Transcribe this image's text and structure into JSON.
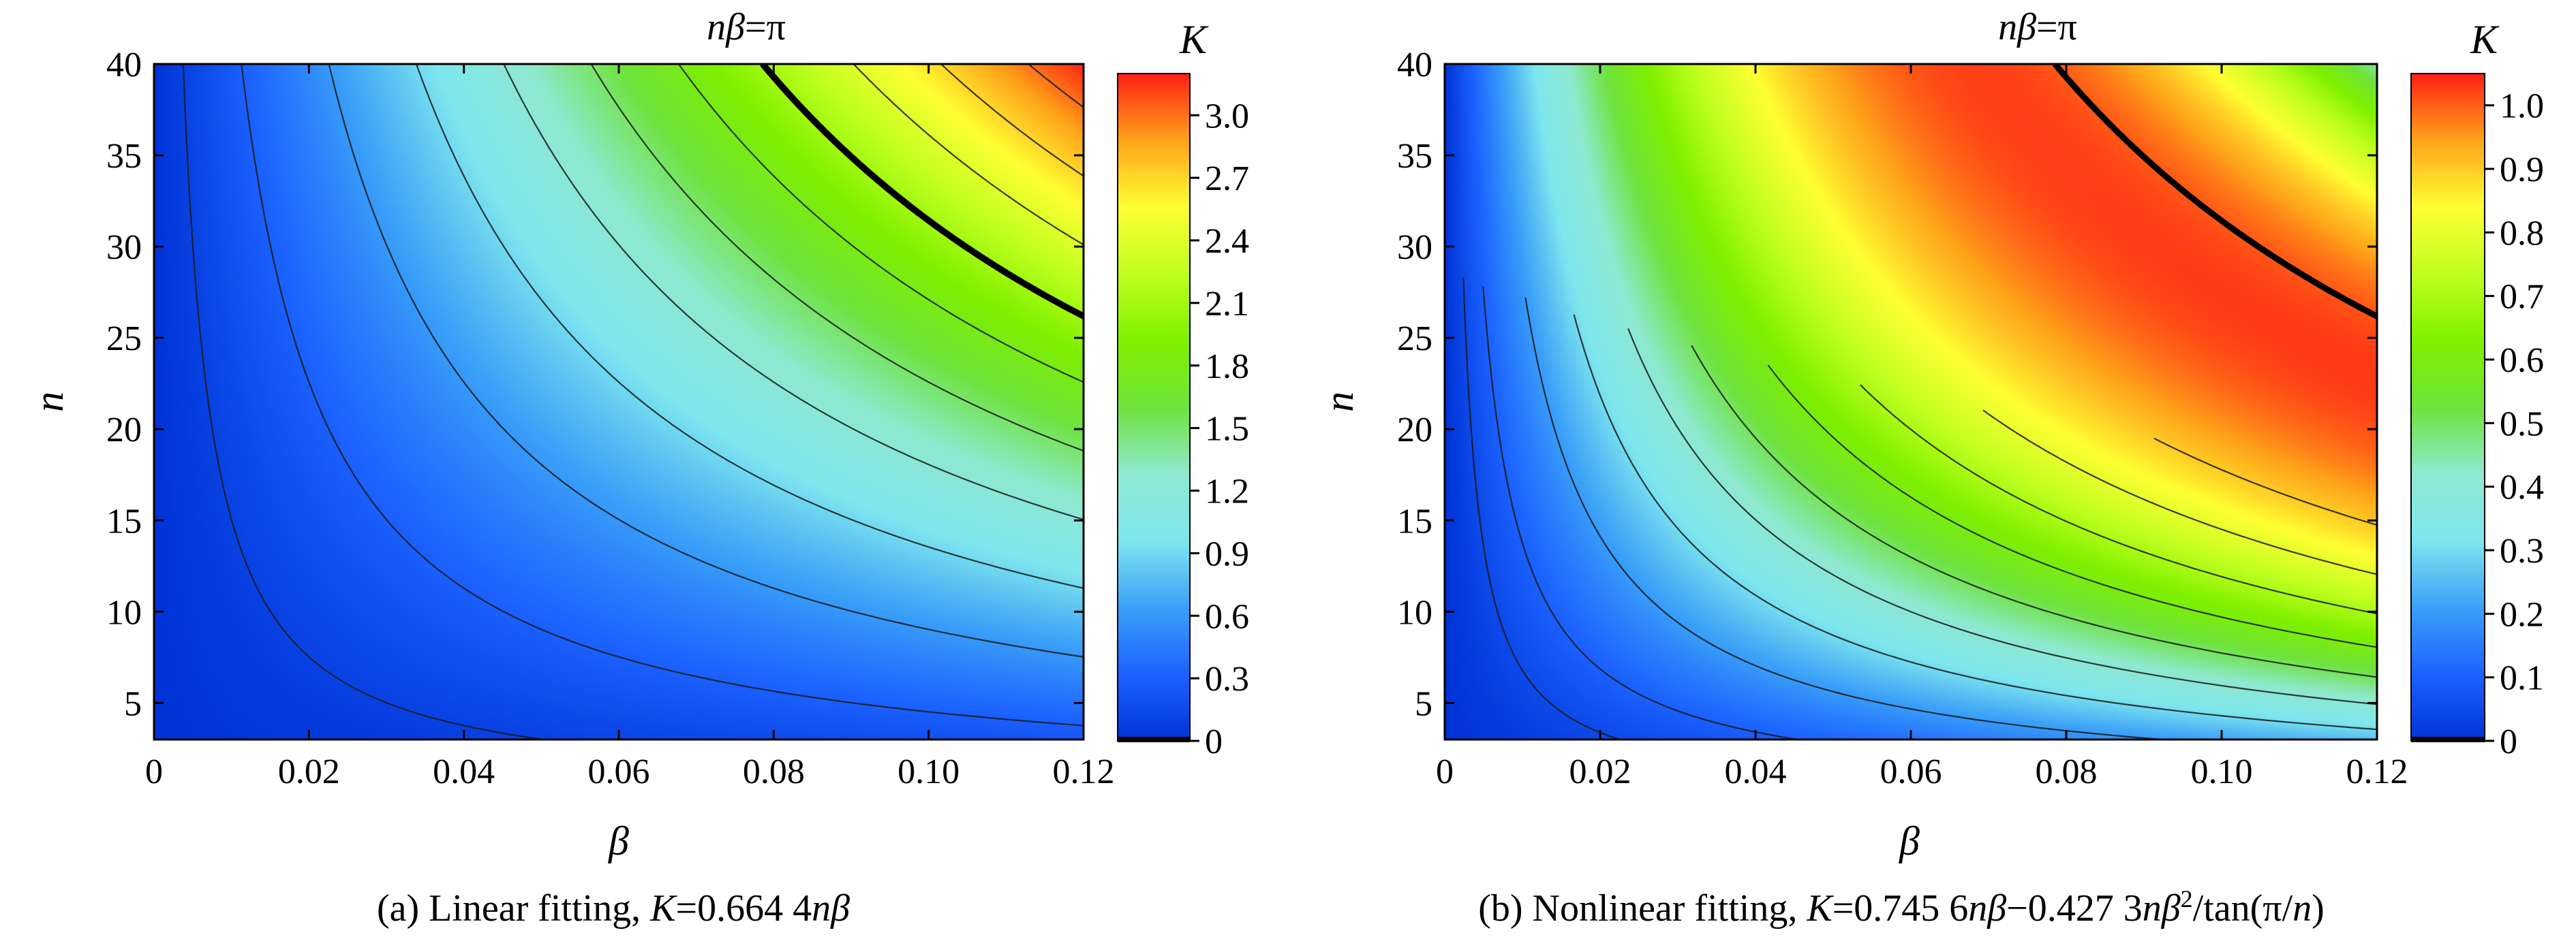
{
  "figure": {
    "charts": [
      {
        "id": "a",
        "title_prefix": "nβ",
        "title_suffix": "=π",
        "caption": {
          "label": "(a) Linear fitting, ",
          "K": "K",
          "eq": "=0.664 4",
          "n": "n",
          "beta": "β"
        }
      },
      {
        "id": "b",
        "title_prefix": "nβ",
        "title_suffix": "=π",
        "caption": {
          "label": "(b) Nonlinear fitting, ",
          "K": "K",
          "eq1": "=0.745 6",
          "n1": "nβ",
          "minus": "−0.427 3",
          "n2": "nβ",
          "sup": "2",
          "tan_open": "/tan(π/",
          "n3": "n",
          "tan_close": ")"
        }
      }
    ]
  },
  "chart_data": [
    {
      "type": "heatmap",
      "title": "nβ=π",
      "xlabel": "β",
      "ylabel": "n",
      "colorbar_label": "K",
      "xlim": [
        0,
        0.12
      ],
      "ylim": [
        3,
        40
      ],
      "x_ticks": [
        "0",
        "0.02",
        "0.04",
        "0.06",
        "0.08",
        "0.10",
        "0.12"
      ],
      "x_tick_values": [
        0,
        0.02,
        0.04,
        0.06,
        0.08,
        0.1,
        0.12
      ],
      "y_ticks": [
        "5",
        "10",
        "15",
        "20",
        "25",
        "30",
        "35",
        "40"
      ],
      "y_tick_values": [
        5,
        10,
        15,
        20,
        25,
        30,
        35,
        40
      ],
      "colorbar_ticks": [
        "0",
        "0.3",
        "0.6",
        "0.9",
        "1.2",
        "1.5",
        "1.8",
        "2.1",
        "2.4",
        "2.7",
        "3.0"
      ],
      "colorbar_tick_values": [
        0,
        0.3,
        0.6,
        0.9,
        1.2,
        1.5,
        1.8,
        2.1,
        2.4,
        2.7,
        3.0
      ],
      "colorbar_range": [
        0,
        3.2
      ],
      "function": "K = 0.6644·n·β",
      "coef_linear": 0.6644,
      "coef_quad": 0,
      "contour_levels": [
        0.1,
        0.3,
        0.6,
        0.9,
        1.2,
        1.5,
        1.8,
        2.1,
        2.4,
        2.7,
        3.0
      ],
      "highlight_curve": "nβ=π",
      "colormap": [
        "#0033d6",
        "#1c62ff",
        "#3aa0f8",
        "#7ee6ee",
        "#8fe8d0",
        "#6ee33a",
        "#7ff000",
        "#c0ff20",
        "#ffff33",
        "#ffa31a",
        "#ff1f14"
      ]
    },
    {
      "type": "heatmap",
      "title": "nβ=π",
      "xlabel": "β",
      "ylabel": "n",
      "colorbar_label": "K",
      "xlim": [
        0,
        0.12
      ],
      "ylim": [
        3,
        40
      ],
      "x_ticks": [
        "0",
        "0.02",
        "0.04",
        "0.06",
        "0.08",
        "0.10",
        "0.12"
      ],
      "x_tick_values": [
        0,
        0.02,
        0.04,
        0.06,
        0.08,
        0.1,
        0.12
      ],
      "y_ticks": [
        "5",
        "10",
        "15",
        "20",
        "25",
        "30",
        "35",
        "40"
      ],
      "y_tick_values": [
        5,
        10,
        15,
        20,
        25,
        30,
        35,
        40
      ],
      "colorbar_ticks": [
        "0",
        "0.1",
        "0.2",
        "0.3",
        "0.4",
        "0.5",
        "0.6",
        "0.7",
        "0.8",
        "0.9",
        "1.0"
      ],
      "colorbar_tick_values": [
        0,
        0.1,
        0.2,
        0.3,
        0.4,
        0.5,
        0.6,
        0.7,
        0.8,
        0.9,
        1.0
      ],
      "colorbar_range": [
        0,
        1.05
      ],
      "function": "K = 0.7456·n·β − 0.4273·n·β²/tan(π/n)",
      "coef_linear": 0.7456,
      "coef_quad": 0.4273,
      "contour_levels": [
        0.05,
        0.1,
        0.2,
        0.3,
        0.4,
        0.5,
        0.6,
        0.7,
        0.8,
        0.9,
        1.0
      ],
      "highlight_curve": "nβ=π",
      "colormap": [
        "#0033d6",
        "#1c62ff",
        "#3aa0f8",
        "#7ee6ee",
        "#8fe8d0",
        "#6ee33a",
        "#7ff000",
        "#c0ff20",
        "#ffff33",
        "#ffa31a",
        "#ff1f14"
      ]
    }
  ]
}
